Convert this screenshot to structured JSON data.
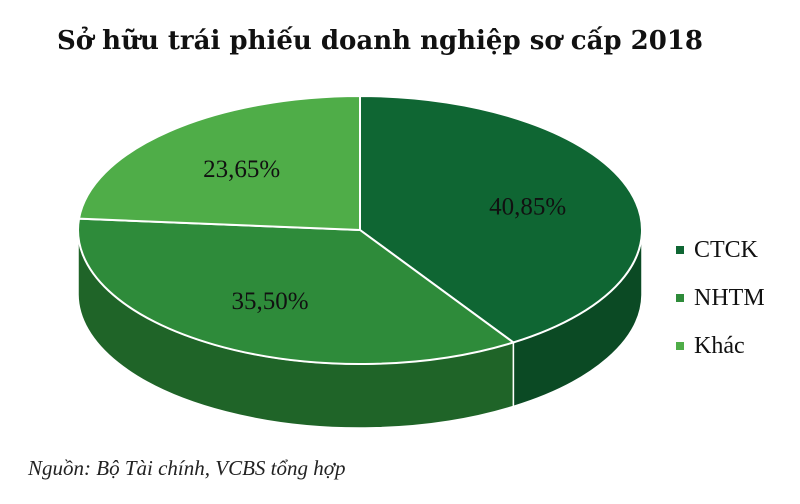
{
  "chart_data": {
    "type": "pie",
    "title": "Sở hữu trái phiếu doanh nghiệp sơ cấp 2018",
    "categories": [
      "CTCK",
      "NHTM",
      "Khác"
    ],
    "values": [
      40.85,
      35.5,
      23.65
    ],
    "labels": [
      "40,85%",
      "35,50%",
      "23,65%"
    ],
    "colors": [
      "#0f6633",
      "#2e8b3a",
      "#4fad48"
    ],
    "side_colors": [
      "#0b4a24",
      "#1f6428",
      "#367e32"
    ],
    "legend_position": "right"
  },
  "source": "Nguồn: Bộ Tài chính, VCBS tổng hợp"
}
